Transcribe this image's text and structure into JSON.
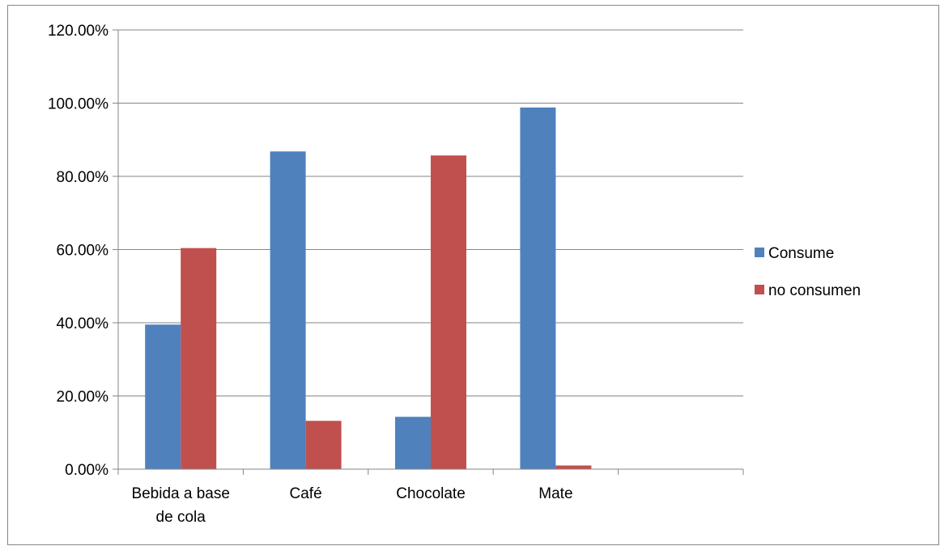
{
  "chart_data": {
    "type": "bar",
    "categories": [
      [
        "Bebida a base",
        "de cola"
      ],
      [
        "Café"
      ],
      [
        "Chocolate"
      ],
      [
        "Mate"
      ],
      [
        ""
      ]
    ],
    "series": [
      {
        "name": "Consume",
        "color": "#4F81BD",
        "values": [
          0.395,
          0.868,
          0.143,
          0.988,
          null
        ]
      },
      {
        "name": "no consumen",
        "color": "#C0504D",
        "values": [
          0.604,
          0.132,
          0.857,
          0.01,
          null
        ]
      }
    ],
    "ylim": [
      0,
      1.2
    ],
    "yticks": [
      0,
      0.2,
      0.4,
      0.6,
      0.8,
      1.0,
      1.2
    ],
    "ytick_labels": [
      "0.00%",
      "20.00%",
      "40.00%",
      "60.00%",
      "80.00%",
      "100.00%",
      "120.00%"
    ],
    "grid": true,
    "legend": "right",
    "title": "",
    "xlabel": "",
    "ylabel": ""
  }
}
